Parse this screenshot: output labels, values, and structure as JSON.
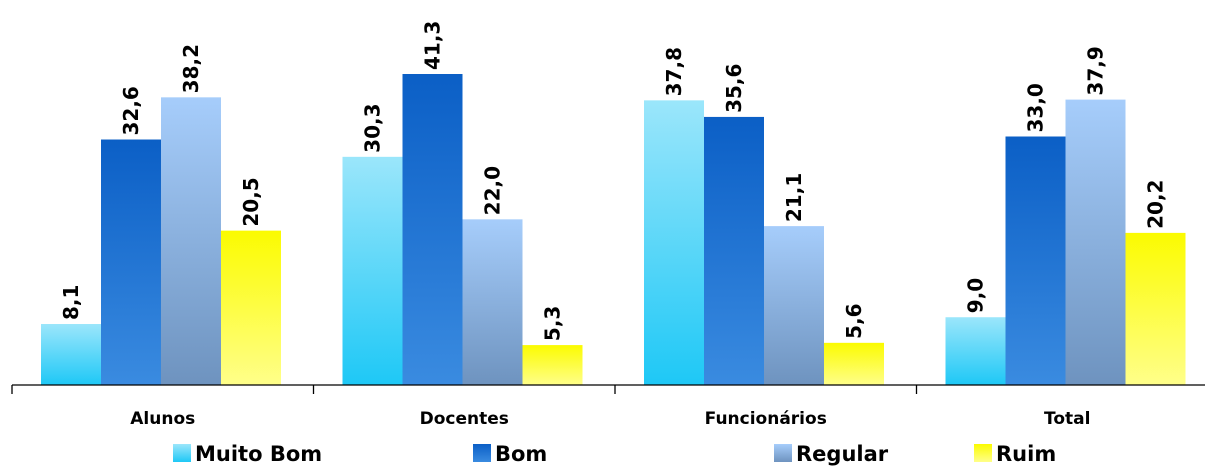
{
  "chart_data": {
    "type": "bar",
    "categories": [
      "Alunos",
      "Docentes",
      "Funcionários",
      "Total"
    ],
    "series": [
      {
        "name": "Muito Bom",
        "values": [
          8.1,
          30.3,
          37.8,
          9.0
        ],
        "labels": [
          "8,1",
          "30,3",
          "37,8",
          "9,0"
        ],
        "color_top": "#9be6fb",
        "color_bottom": "#1ec8f6"
      },
      {
        "name": "Bom",
        "values": [
          32.6,
          41.3,
          35.6,
          33.0
        ],
        "labels": [
          "32,6",
          "41,3",
          "35,6",
          "33,0"
        ],
        "color_top": "#0b5fc6",
        "color_bottom": "#3a8be0"
      },
      {
        "name": "Regular",
        "values": [
          38.2,
          22.0,
          21.1,
          37.9
        ],
        "labels": [
          "38,2",
          "22,0",
          "21,1",
          "37,9"
        ],
        "color_top": "#a6cdfb",
        "color_bottom": "#6e93bf"
      },
      {
        "name": "Ruim",
        "values": [
          20.5,
          5.3,
          5.6,
          20.2
        ],
        "labels": [
          "20,5",
          "5,3",
          "5,6",
          "20,2"
        ],
        "color_top": "#fbfb00",
        "color_bottom": "#ffff8a"
      }
    ],
    "ylim": [
      0,
      41.3
    ],
    "grid": false,
    "legend_position": "bottom"
  }
}
